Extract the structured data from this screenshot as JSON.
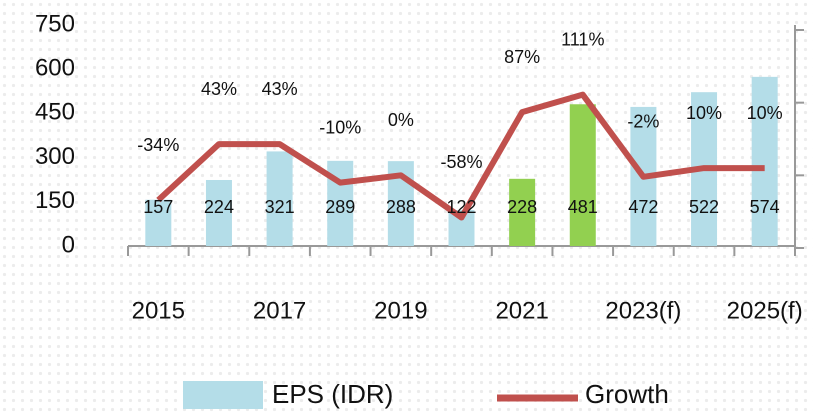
{
  "chart_data": {
    "type": "bar",
    "categories": [
      "2015",
      null,
      "2017",
      null,
      "2019",
      null,
      "2021",
      null,
      "2023(f)",
      null,
      "2025(f)"
    ],
    "series": [
      {
        "name": "EPS (IDR)",
        "type": "bar",
        "color": "#b4dde8",
        "colors": [
          "#b4dde8",
          "#b4dde8",
          "#b4dde8",
          "#b4dde8",
          "#b4dde8",
          "#b4dde8",
          "#92d050",
          "#92d050",
          "#b4dde8",
          "#b4dde8",
          "#b4dde8"
        ],
        "values": [
          157,
          224,
          321,
          289,
          288,
          122,
          228,
          481,
          472,
          522,
          574
        ]
      },
      {
        "name": "Growth",
        "type": "line",
        "axis": "y2",
        "color": "#c0504d",
        "values": [
          -34,
          43,
          43,
          -10,
          0,
          -58,
          87,
          111,
          -2,
          10,
          10
        ],
        "value_labels": [
          "-34%",
          "43%",
          "43%",
          "-10%",
          "0%",
          "-58%",
          "87%",
          "111%",
          "-2%",
          "10%",
          "10%"
        ]
      }
    ],
    "ylim": [
      0,
      750
    ],
    "yticks": [
      0,
      150,
      300,
      450,
      600,
      750
    ],
    "y2lim": [
      -100,
      200
    ],
    "y2ticks": [
      -100,
      0,
      100,
      200
    ],
    "legend": "bottom"
  }
}
